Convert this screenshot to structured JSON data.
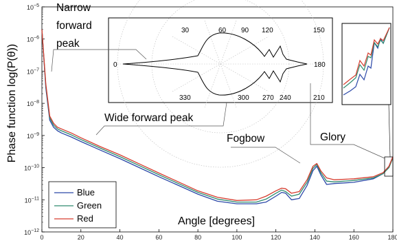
{
  "chart_data": {
    "type": "line",
    "xlabel": "Angle [degrees]",
    "ylabel": "Phase function log(P(θ))",
    "xlim": [
      0,
      180
    ],
    "ylim_exponents": [
      -12,
      -5
    ],
    "yscale": "log",
    "x_ticks": [
      "0",
      "20",
      "40",
      "60",
      "80",
      "100",
      "120",
      "140",
      "160",
      "180"
    ],
    "y_ticks": [
      {
        "base": "10",
        "exp": "−5"
      },
      {
        "base": "10",
        "exp": "−6"
      },
      {
        "base": "10",
        "exp": "−7"
      },
      {
        "base": "10",
        "exp": "−8"
      },
      {
        "base": "10",
        "exp": "−9"
      },
      {
        "base": "10",
        "exp": "−10"
      },
      {
        "base": "10",
        "exp": "−11"
      },
      {
        "base": "10",
        "exp": "−12"
      }
    ],
    "legend": {
      "position": "bottom-left",
      "entries": [
        "Blue",
        "Green",
        "Red"
      ]
    },
    "colors": {
      "Blue": "#2b48a8",
      "Green": "#2e8a6e",
      "Red": "#d63c2e"
    },
    "x": [
      0,
      2,
      4,
      6,
      8,
      10,
      15,
      20,
      30,
      40,
      50,
      60,
      70,
      80,
      90,
      100,
      110,
      115,
      120,
      123,
      125,
      128,
      132,
      136,
      139,
      141,
      143,
      146,
      150,
      160,
      170,
      175,
      178,
      180
    ],
    "series": [
      {
        "name": "Blue",
        "values": [
          2e-06,
          3e-08,
          3e-09,
          1.8e-09,
          1.4e-09,
          1.2e-09,
          9e-10,
          6.5e-10,
          3.5e-10,
          1.9e-10,
          1e-10,
          5.2e-11,
          2.8e-11,
          1.5e-11,
          9e-12,
          7.5e-12,
          7.5e-12,
          8.5e-12,
          1.3e-11,
          1.7e-11,
          1.6e-11,
          1e-11,
          1.1e-11,
          2.8e-11,
          8e-11,
          1.1e-10,
          6e-11,
          3e-11,
          3.2e-11,
          3.5e-11,
          4.5e-11,
          6.5e-11,
          1.1e-10,
          2.2e-10
        ]
      },
      {
        "name": "Green",
        "values": [
          2e-06,
          3.5e-08,
          3.5e-09,
          2.1e-09,
          1.6e-09,
          1.4e-09,
          1.05e-09,
          7.5e-10,
          4e-10,
          2.2e-10,
          1.15e-10,
          6e-11,
          3.2e-11,
          1.7e-11,
          1.05e-11,
          8.5e-12,
          8.5e-12,
          1.05e-11,
          1.6e-11,
          2e-11,
          1.8e-11,
          1.3e-11,
          1.5e-11,
          3.5e-11,
          9.5e-11,
          1.25e-10,
          7e-11,
          3.8e-11,
          3.6e-11,
          4e-11,
          4.8e-11,
          6.5e-11,
          1e-10,
          2e-10
        ]
      },
      {
        "name": "Red",
        "values": [
          2e-06,
          4e-08,
          4e-09,
          2.4e-09,
          1.8e-09,
          1.6e-09,
          1.2e-09,
          8.5e-10,
          4.5e-10,
          2.5e-10,
          1.3e-10,
          6.8e-11,
          3.6e-11,
          1.9e-11,
          1.2e-11,
          9.5e-12,
          1e-11,
          1.3e-11,
          1.9e-11,
          2.3e-11,
          2.2e-11,
          1.6e-11,
          1.8e-11,
          4.2e-11,
          1.1e-10,
          1.35e-10,
          8e-11,
          4.8e-11,
          4.2e-11,
          4.5e-11,
          5.2e-11,
          7e-11,
          1.1e-10,
          2.2e-10
        ]
      }
    ],
    "annotations": [
      "Narrow forward peak",
      "Wide forward peak",
      "Fogbow",
      "Glory"
    ],
    "polar_inset": {
      "angle_labels": [
        "30",
        "60",
        "90",
        "120",
        "150",
        "180",
        "210",
        "240",
        "270",
        "300",
        "330",
        "0"
      ]
    }
  }
}
